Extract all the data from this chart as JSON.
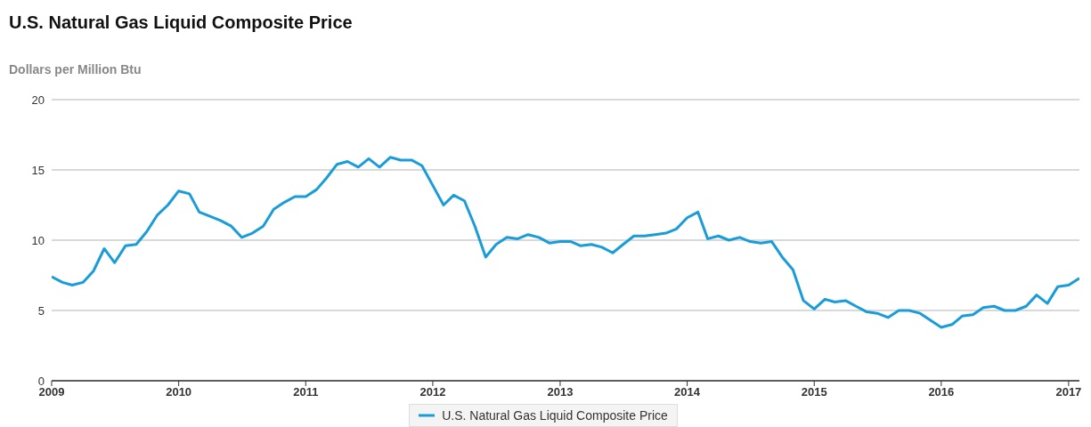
{
  "chart_data": {
    "type": "line",
    "title": "U.S. Natural Gas Liquid Composite Price",
    "ylabel": "Dollars per Million Btu",
    "x": [
      "2009-01",
      "2009-02",
      "2009-03",
      "2009-04",
      "2009-05",
      "2009-06",
      "2009-07",
      "2009-08",
      "2009-09",
      "2009-10",
      "2009-11",
      "2009-12",
      "2010-01",
      "2010-02",
      "2010-03",
      "2010-04",
      "2010-05",
      "2010-06",
      "2010-07",
      "2010-08",
      "2010-09",
      "2010-10",
      "2010-11",
      "2010-12",
      "2011-01",
      "2011-02",
      "2011-03",
      "2011-04",
      "2011-05",
      "2011-06",
      "2011-07",
      "2011-08",
      "2011-09",
      "2011-10",
      "2011-11",
      "2011-12",
      "2012-01",
      "2012-02",
      "2012-03",
      "2012-04",
      "2012-05",
      "2012-06",
      "2012-07",
      "2012-08",
      "2012-09",
      "2012-10",
      "2012-11",
      "2012-12",
      "2013-01",
      "2013-02",
      "2013-03",
      "2013-04",
      "2013-05",
      "2013-06",
      "2013-07",
      "2013-08",
      "2013-09",
      "2013-10",
      "2013-11",
      "2013-12",
      "2014-01",
      "2014-02",
      "2014-03",
      "2014-04",
      "2014-05",
      "2014-06",
      "2014-07",
      "2014-08",
      "2014-09",
      "2014-10",
      "2014-11",
      "2014-12",
      "2015-01",
      "2015-02",
      "2015-03",
      "2015-04",
      "2015-05",
      "2015-06",
      "2015-07",
      "2015-08",
      "2015-09",
      "2015-10",
      "2015-11",
      "2015-12",
      "2016-01",
      "2016-02",
      "2016-03",
      "2016-04",
      "2016-05",
      "2016-06",
      "2016-07",
      "2016-08",
      "2016-09",
      "2016-10",
      "2016-11",
      "2016-12",
      "2017-01",
      "2017-02"
    ],
    "series": [
      {
        "name": "U.S. Natural Gas Liquid Composite Price",
        "color": "#1a9cd8",
        "values": [
          7.4,
          7.0,
          6.8,
          7.0,
          7.8,
          9.4,
          8.4,
          9.6,
          9.7,
          10.6,
          11.8,
          12.5,
          13.5,
          13.3,
          12.0,
          11.7,
          11.4,
          11.0,
          10.2,
          10.5,
          11.0,
          12.2,
          12.7,
          13.1,
          13.1,
          13.6,
          14.4,
          15.4,
          15.6,
          15.2,
          15.8,
          15.2,
          15.9,
          15.7,
          15.7,
          15.3,
          13.9,
          12.5,
          13.2,
          12.8,
          11.0,
          8.8,
          9.7,
          10.2,
          10.1,
          10.4,
          10.2,
          9.8,
          9.9,
          9.9,
          9.6,
          9.7,
          9.5,
          9.1,
          9.7,
          10.3,
          10.3,
          10.4,
          10.5,
          10.8,
          11.6,
          12.0,
          10.1,
          10.3,
          10.0,
          10.2,
          9.9,
          9.8,
          9.9,
          8.8,
          7.9,
          5.7,
          5.1,
          5.8,
          5.6,
          5.7,
          5.3,
          4.9,
          4.8,
          4.5,
          5.0,
          5.0,
          4.8,
          4.3,
          3.8,
          4.0,
          4.6,
          4.7,
          5.2,
          5.3,
          5.0,
          5.0,
          5.3,
          6.1,
          5.5,
          6.7,
          6.8,
          7.3
        ]
      }
    ],
    "xlim": [
      "2009-01",
      "2017-02"
    ],
    "xticks": [
      {
        "value": "2009",
        "label": "2009"
      },
      {
        "value": "2010",
        "label": "2010"
      },
      {
        "value": "2011",
        "label": "2011"
      },
      {
        "value": "2012",
        "label": "2012"
      },
      {
        "value": "2013",
        "label": "2013"
      },
      {
        "value": "2014",
        "label": "2014"
      },
      {
        "value": "2015",
        "label": "2015"
      },
      {
        "value": "2016",
        "label": "2016"
      },
      {
        "value": "2017",
        "label": "2017"
      }
    ],
    "ylim": [
      0,
      20
    ],
    "yticks": [
      0,
      5,
      10,
      15,
      20
    ],
    "grid": "y",
    "legend": "bottom",
    "marker": "none",
    "line_style": "solid"
  }
}
